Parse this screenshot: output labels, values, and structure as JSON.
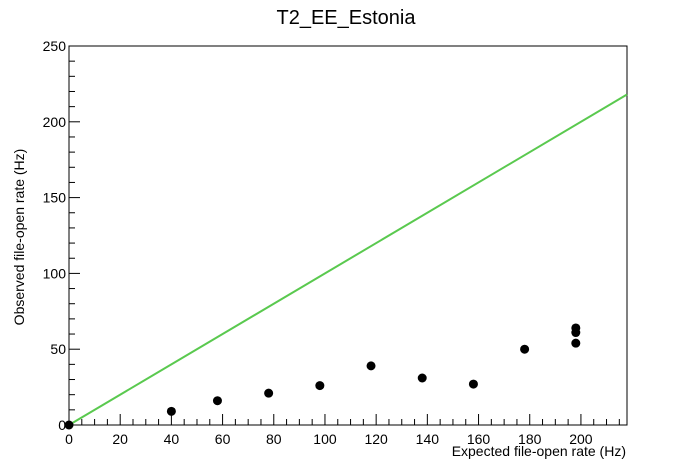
{
  "chart_data": {
    "type": "scatter",
    "title": "T2_EE_Estonia",
    "xlabel": "Expected file-open rate (Hz)",
    "ylabel": "Observed file-open rate (Hz)",
    "xlim": [
      0,
      218
    ],
    "ylim": [
      0,
      250
    ],
    "x_ticks": [
      0,
      20,
      40,
      60,
      80,
      100,
      120,
      140,
      160,
      180,
      200
    ],
    "y_ticks": [
      0,
      50,
      100,
      150,
      200,
      250
    ],
    "grid": false,
    "reference_line": {
      "x": [
        0,
        218
      ],
      "y": [
        0,
        218
      ],
      "color": "#5ac94f"
    },
    "marker_color": "#000000",
    "points": [
      {
        "x": 0,
        "y": 0
      },
      {
        "x": 40,
        "y": 9
      },
      {
        "x": 58,
        "y": 16
      },
      {
        "x": 78,
        "y": 21
      },
      {
        "x": 98,
        "y": 26
      },
      {
        "x": 118,
        "y": 39
      },
      {
        "x": 138,
        "y": 31
      },
      {
        "x": 158,
        "y": 27
      },
      {
        "x": 178,
        "y": 50
      },
      {
        "x": 198,
        "y": 54
      },
      {
        "x": 198,
        "y": 61
      },
      {
        "x": 198,
        "y": 64
      }
    ]
  }
}
